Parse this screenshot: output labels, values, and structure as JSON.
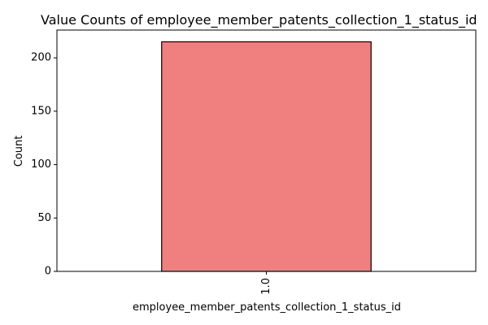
{
  "chart_data": {
    "type": "bar",
    "title": "Value Counts of employee_member_patents_collection_1_status_id",
    "xlabel": "employee_member_patents_collection_1_status_id",
    "ylabel": "Count",
    "categories": [
      "1.0"
    ],
    "values": [
      215
    ],
    "ylim": [
      0,
      226
    ],
    "yticks": [
      0,
      50,
      100,
      150,
      200
    ],
    "x_tick_rotation": "vertical",
    "bar_color": "#f08080",
    "bar_edge_color": "#000000",
    "grid": false,
    "legend": "none"
  }
}
